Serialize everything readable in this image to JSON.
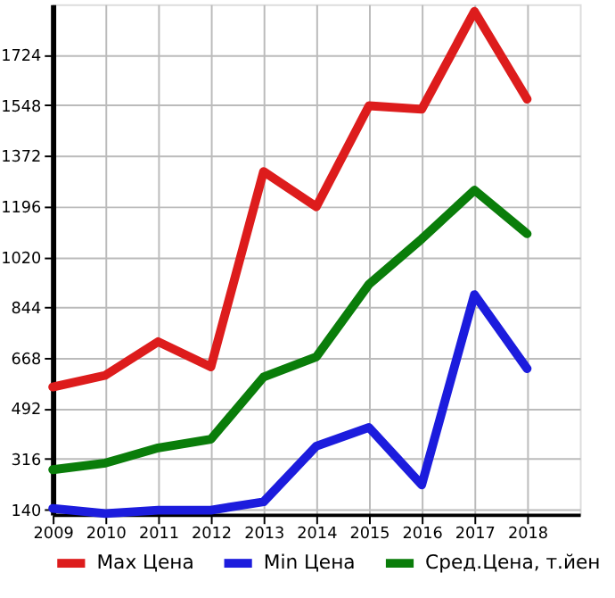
{
  "chart_data": {
    "type": "line",
    "x": [
      2009,
      2010,
      2011,
      2012,
      2013,
      2014,
      2015,
      2016,
      2017,
      2018
    ],
    "series": [
      {
        "name": "Max Цена",
        "color": "#dd1c1c",
        "values": [
          566,
          607,
          724,
          636,
          1317,
          1194,
          1546,
          1534,
          1875,
          1569
        ]
      },
      {
        "name": "Min Цена",
        "color": "#1c1cdd",
        "values": [
          143,
          125,
          137,
          137,
          166,
          360,
          425,
          225,
          888,
          630
        ]
      },
      {
        "name": "Сред.Цена, т.йен",
        "color": "#0a7d0a",
        "values": [
          278,
          301,
          354,
          384,
          601,
          671,
          924,
          1082,
          1252,
          1100
        ]
      }
    ],
    "xlim": [
      2009,
      2019
    ],
    "xticks": [
      2009,
      2010,
      2011,
      2012,
      2013,
      2014,
      2015,
      2016,
      2017,
      2018
    ],
    "ylim": [
      122,
      1900
    ],
    "yticks": [
      140,
      316,
      492,
      668,
      844,
      1020,
      1196,
      1372,
      1548,
      1724
    ],
    "grid": true,
    "legend": "bottom",
    "marker": "none",
    "line_style": "solid"
  }
}
